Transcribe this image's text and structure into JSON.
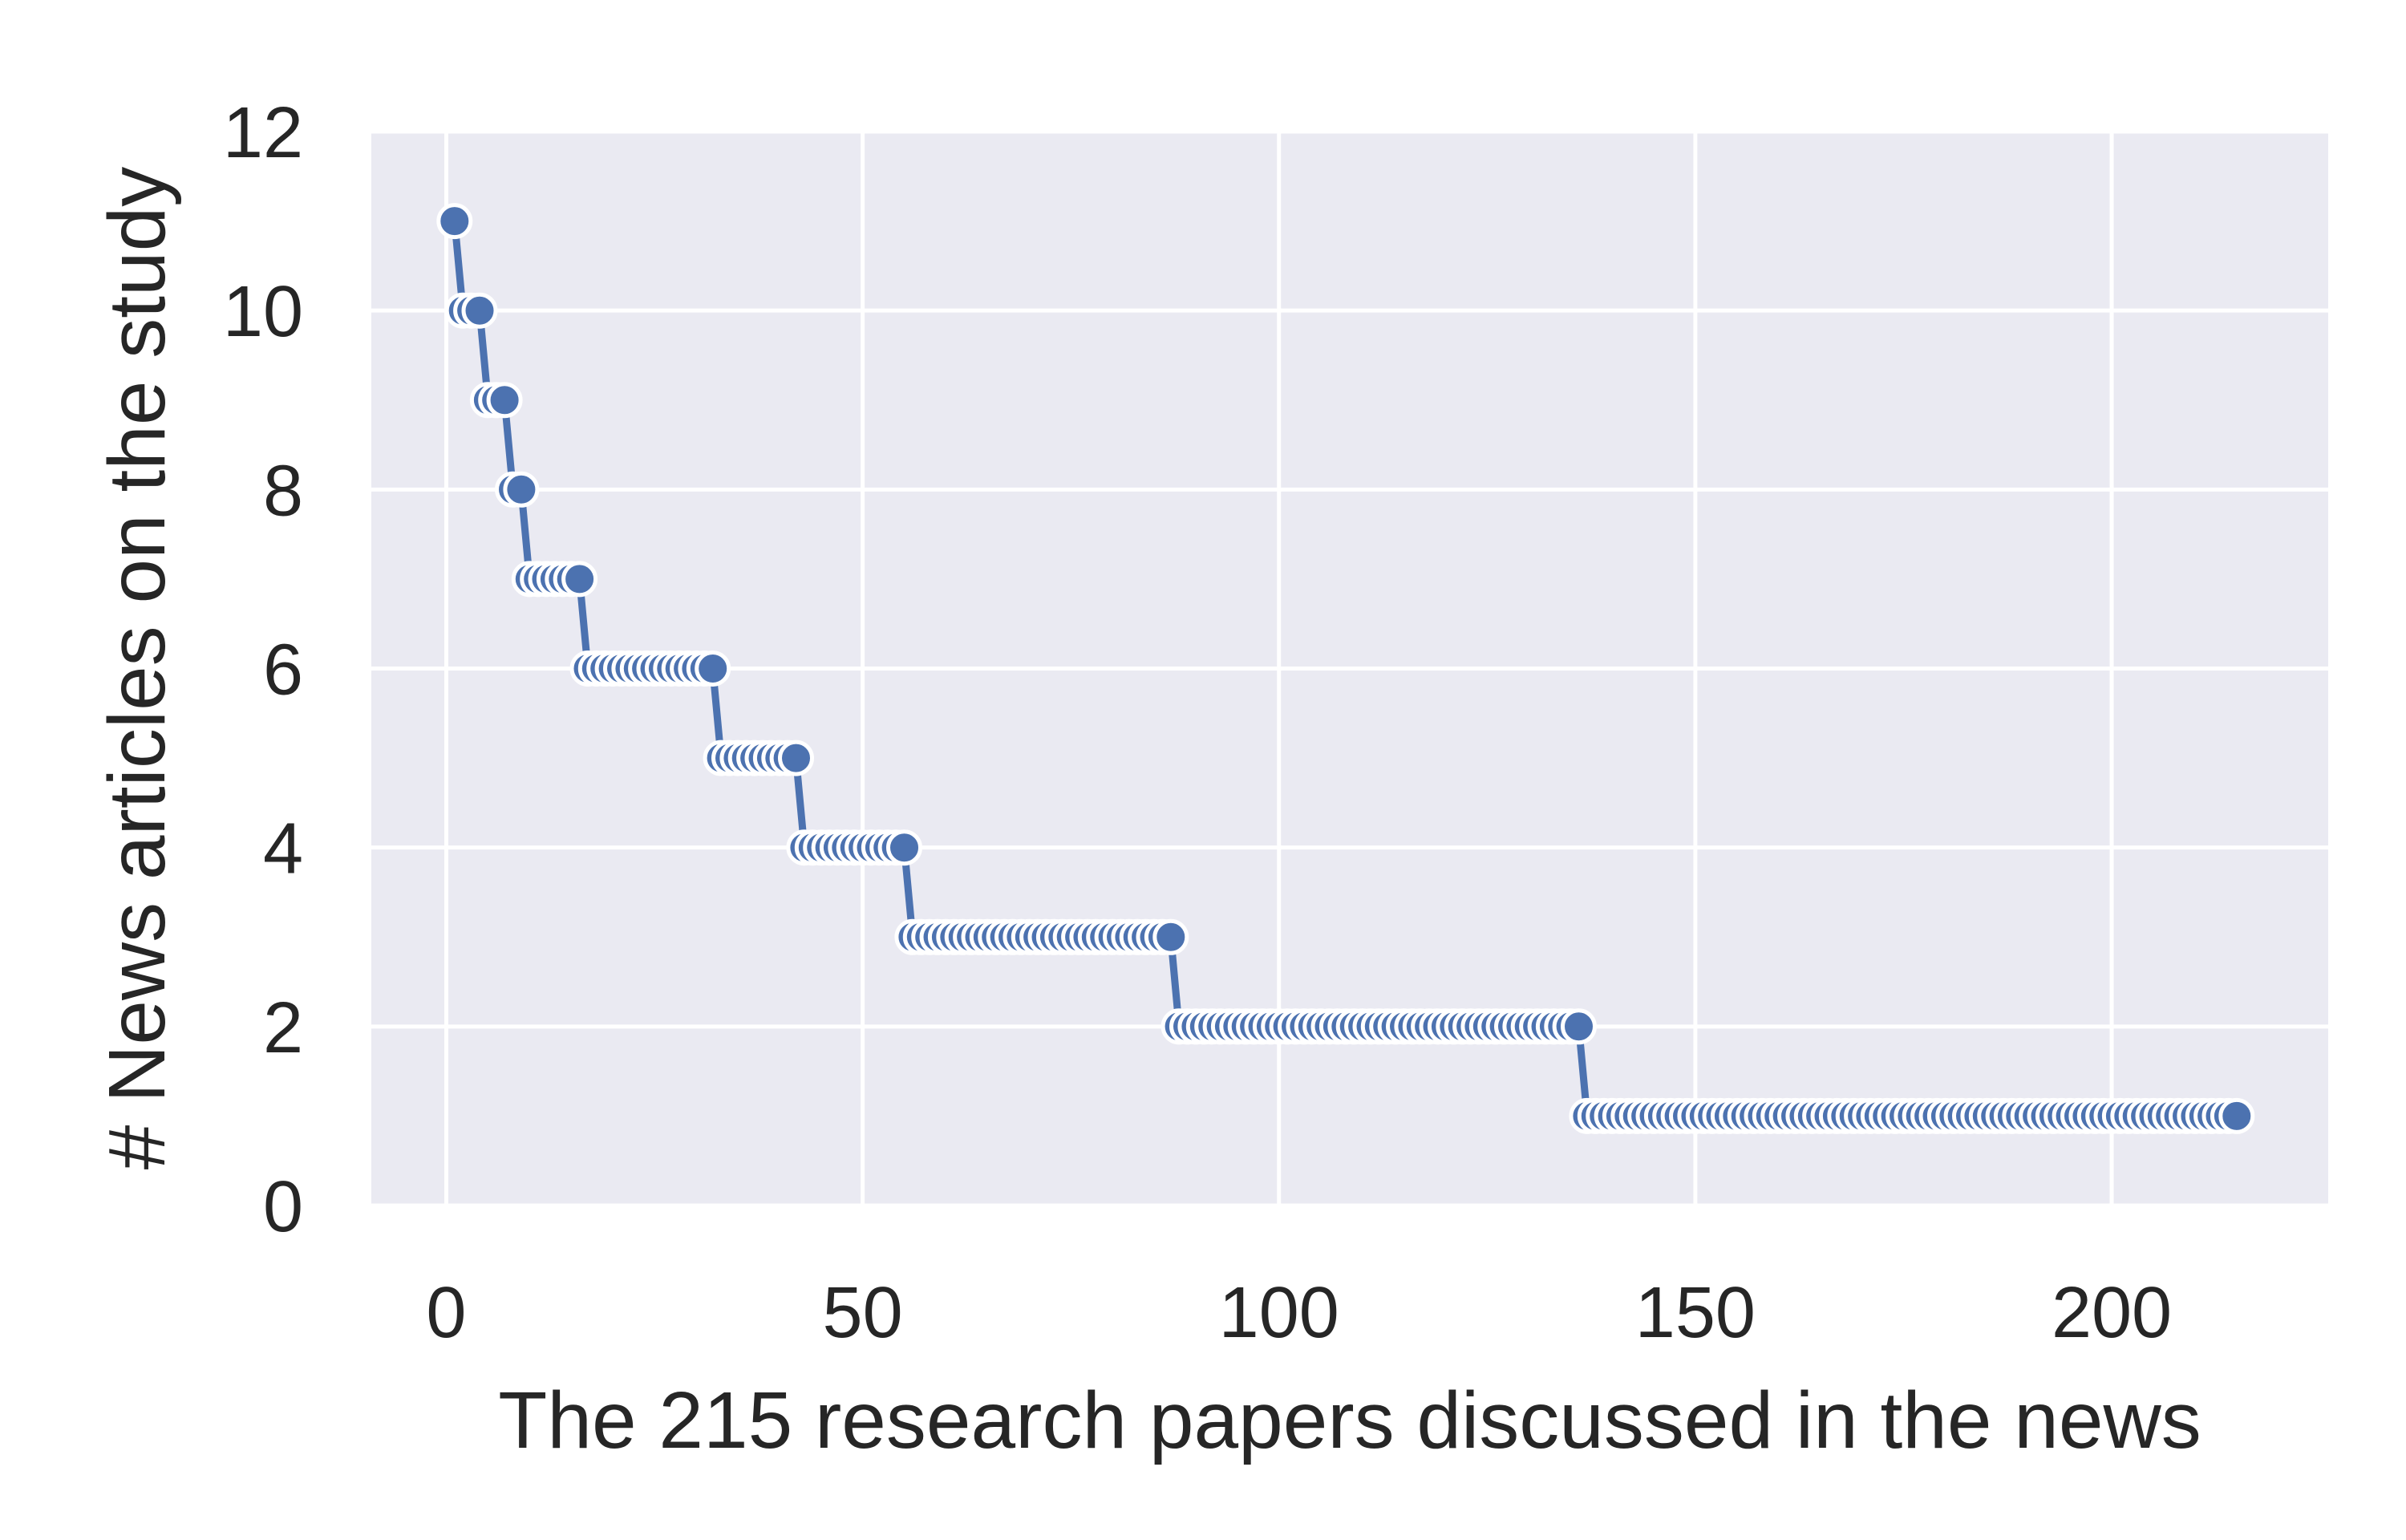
{
  "chart_data": {
    "type": "line",
    "xlabel": "The 215 research papers discussed in the news",
    "ylabel": "# News articles on the study",
    "xlim": [
      -9,
      226
    ],
    "ylim": [
      0,
      12
    ],
    "xticks": [
      0,
      50,
      100,
      150,
      200
    ],
    "yticks": [
      0,
      2,
      4,
      6,
      8,
      10,
      12
    ],
    "grid": true,
    "color": "#4c72b0",
    "background": "#eaeaf2",
    "marker": "circle",
    "levels": [
      {
        "y": 11,
        "x_start": 1,
        "x_end": 1
      },
      {
        "y": 10,
        "x_start": 2,
        "x_end": 4
      },
      {
        "y": 9,
        "x_start": 5,
        "x_end": 7
      },
      {
        "y": 8,
        "x_start": 8,
        "x_end": 9
      },
      {
        "y": 7,
        "x_start": 10,
        "x_end": 16
      },
      {
        "y": 6,
        "x_start": 17,
        "x_end": 32
      },
      {
        "y": 5,
        "x_start": 33,
        "x_end": 42
      },
      {
        "y": 4,
        "x_start": 43,
        "x_end": 55
      },
      {
        "y": 3,
        "x_start": 56,
        "x_end": 87
      },
      {
        "y": 2,
        "x_start": 88,
        "x_end": 136
      },
      {
        "y": 1,
        "x_start": 137,
        "x_end": 215
      }
    ]
  }
}
